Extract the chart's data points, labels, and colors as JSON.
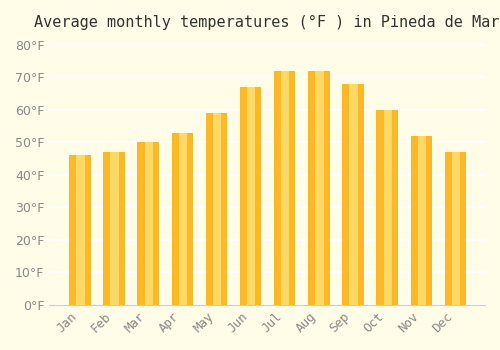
{
  "title": "Average monthly temperatures (°F ) in Pineda de Mar",
  "months": [
    "Jan",
    "Feb",
    "Mar",
    "Apr",
    "May",
    "Jun",
    "Jul",
    "Aug",
    "Sep",
    "Oct",
    "Nov",
    "Dec"
  ],
  "values": [
    46,
    47,
    50,
    53,
    59,
    67,
    72,
    72,
    68,
    60,
    52,
    47
  ],
  "bar_color": "#FDB827",
  "bar_edge_color": "#F5A800",
  "background_color": "#FFFDE7",
  "grid_color": "#FFFFFF",
  "text_color": "#888888",
  "ylim": [
    0,
    82
  ],
  "yticks": [
    0,
    10,
    20,
    30,
    40,
    50,
    60,
    70,
    80
  ],
  "title_fontsize": 11,
  "tick_fontsize": 9
}
